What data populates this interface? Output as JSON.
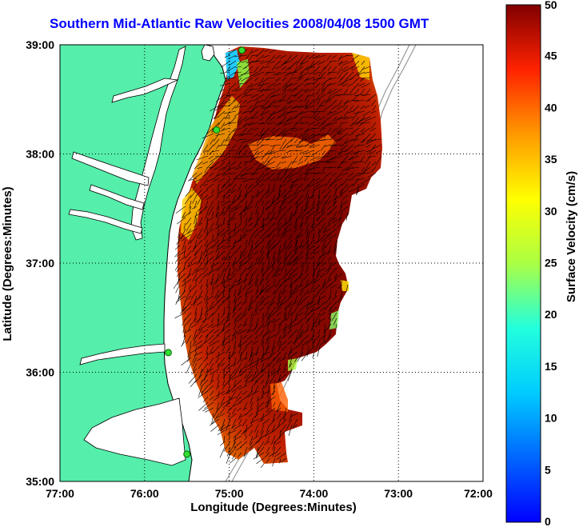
{
  "title": "Southern Mid-Atlantic Raw Velocities 2008/04/08 1500 GMT",
  "map": {
    "xlabel": "Longitude (Degrees:Minutes)",
    "ylabel": "Latitude (Degrees:Minutes)",
    "x_ticks": [
      "77:00",
      "76:00",
      "75:00",
      "74:00",
      "73:00",
      "72:00"
    ],
    "y_ticks": [
      "39:00",
      "38:00",
      "37:00",
      "36:00",
      "35:00"
    ],
    "lon_range": [
      -77,
      -72
    ],
    "lat_range": [
      35,
      39
    ],
    "grid": true,
    "land_color": "#55eeaa",
    "water_color": "#ffffff"
  },
  "colorbar": {
    "label": "Surface Velocity (cm/s)",
    "ticks": [
      "0",
      "5",
      "10",
      "15",
      "20",
      "25",
      "30",
      "35",
      "40",
      "45",
      "50"
    ],
    "range": [
      0,
      50
    ],
    "colormap": "jet"
  },
  "stations": [
    {
      "lon": -74.85,
      "lat": 38.95
    },
    {
      "lon": -75.15,
      "lat": 38.22
    },
    {
      "lon": -75.72,
      "lat": 36.18
    },
    {
      "lon": -75.5,
      "lat": 35.25
    }
  ]
}
